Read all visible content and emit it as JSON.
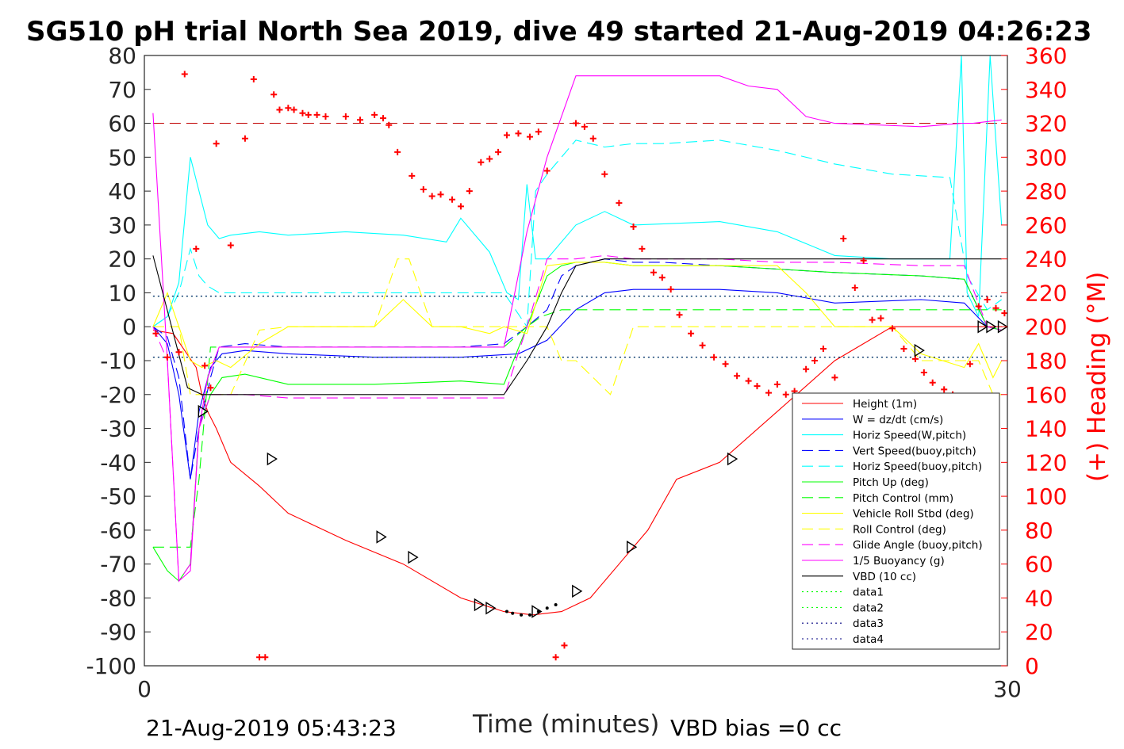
{
  "chart_data": {
    "type": "line",
    "title": "SG510 pH trial North Sea 2019, dive 49 started 21-Aug-2019 04:26:23",
    "xlabel": "Time (minutes)",
    "ylabel": "",
    "y2label": "(+) Heading (°M)",
    "xlim": [
      0,
      30
    ],
    "ylim": [
      -100,
      80
    ],
    "y2lim": [
      0,
      360
    ],
    "x_ticks": [
      "0",
      "30"
    ],
    "y_ticks": [
      "80",
      "70",
      "60",
      "50",
      "40",
      "30",
      "20",
      "10",
      "0",
      "-10",
      "-20",
      "-30",
      "-40",
      "-50",
      "-60",
      "-70",
      "-80",
      "-90",
      "-100"
    ],
    "y2_ticks": [
      "360",
      "340",
      "320",
      "300",
      "280",
      "260",
      "240",
      "220",
      "200",
      "180",
      "160",
      "140",
      "120",
      "100",
      "80",
      "60",
      "40",
      "20",
      "0"
    ],
    "footer_left": "21-Aug-2019 05:43:23",
    "footer_right": "VBD bias =0 cc",
    "legend_position": "bottom-right",
    "series": [
      {
        "name": "Height (1m)",
        "color": "#ff0000",
        "dash": "solid",
        "x": [
          0.3,
          1.0,
          1.8,
          2.0,
          2.2,
          2.5,
          3.0,
          4.0,
          5.0,
          7.0,
          9.0,
          11.0,
          12.5,
          13.5,
          14.5,
          15.5,
          16.5,
          17.5,
          18.5,
          20.0,
          22.0,
          24.0,
          26.0,
          28.0,
          28.6,
          29.0,
          29.8
        ],
        "y": [
          -1,
          -2,
          -12,
          -20,
          -25,
          -30,
          -40,
          -47,
          -55,
          -63,
          -70,
          -80,
          -84,
          -85,
          -84,
          -80,
          -70,
          -60,
          -45,
          -40,
          -25,
          -10,
          0,
          0,
          0,
          0,
          0
        ]
      },
      {
        "name": "W = dz/dt (cm/s)",
        "color": "#0000ff",
        "dash": "solid",
        "x": [
          0.3,
          0.8,
          1.2,
          1.6,
          1.9,
          2.3,
          2.7,
          3.5,
          5,
          8,
          11,
          13,
          14,
          15,
          16,
          17,
          18,
          20,
          22,
          24,
          27,
          28.5,
          29.3,
          29.8
        ],
        "y": [
          0,
          -5,
          -20,
          -45,
          -25,
          -12,
          -8,
          -7,
          -8,
          -9,
          -9,
          -8,
          -4,
          5,
          10,
          11,
          11,
          11,
          10,
          7,
          8,
          7,
          0,
          -1
        ]
      },
      {
        "name": "Horiz Speed(W,pitch)",
        "color": "#00ffff",
        "dash": "solid",
        "x": [
          0.3,
          0.8,
          1.2,
          1.6,
          1.9,
          2.2,
          2.6,
          3.0,
          4.0,
          5.0,
          7.0,
          9.0,
          10.5,
          11.0,
          12.0,
          12.6,
          13.0,
          13.3,
          13.6,
          14.0,
          15.0,
          16.0,
          17.0,
          20.0,
          22.0,
          24.0,
          26.0,
          28.0,
          28.4,
          28.6,
          29.0,
          29.4,
          29.8
        ],
        "y": [
          0,
          3,
          13,
          50,
          40,
          30,
          26,
          27,
          28,
          27,
          28,
          27,
          25,
          32,
          22,
          10,
          8,
          42,
          20,
          20,
          30,
          34,
          30,
          31,
          28,
          21,
          20,
          20,
          80,
          10,
          3,
          80,
          30
        ]
      },
      {
        "name": "Vert Speed(buoy,pitch)",
        "color": "#0000ff",
        "dash": "longdash",
        "x": [
          0.3,
          0.8,
          1.2,
          1.6,
          1.9,
          2.3,
          2.6,
          3.5,
          5,
          8,
          11,
          12.5,
          13.3,
          14,
          14.5,
          15,
          16,
          17,
          18,
          20,
          22,
          24,
          27,
          28.5,
          29.3,
          29.8
        ],
        "y": [
          0,
          -3,
          -15,
          -45,
          -30,
          -15,
          -6,
          -5,
          -6,
          -6,
          -6,
          -5,
          0,
          5,
          15,
          18,
          20,
          19,
          19,
          18,
          17,
          16,
          15,
          14,
          0,
          -1
        ]
      },
      {
        "name": "Horiz Speed(buoy,pitch)",
        "color": "#00ffff",
        "dash": "longdash",
        "x": [
          0.3,
          0.8,
          1.2,
          1.6,
          1.9,
          2.2,
          2.6,
          3.5,
          5,
          8,
          11,
          12.5,
          13.3,
          13.6,
          14,
          15,
          16,
          17,
          18,
          20,
          22,
          24,
          26,
          28,
          28.6,
          29.3,
          29.8
        ],
        "y": [
          0,
          3,
          10,
          23,
          15,
          12,
          10,
          10,
          10,
          10,
          10,
          10,
          0,
          40,
          45,
          55,
          53,
          54,
          54,
          55,
          52,
          48,
          45,
          44,
          15,
          5,
          8
        ]
      },
      {
        "name": "Pitch Up (deg)",
        "color": "#00ff00",
        "dash": "solid",
        "x": [
          0.3,
          0.8,
          1.2,
          1.6,
          1.9,
          2.3,
          2.7,
          3.5,
          5,
          8,
          11,
          12.5,
          13.3,
          14,
          14.5,
          15,
          16,
          17,
          18,
          20,
          22,
          24,
          27,
          28.5,
          29.3,
          29.8
        ],
        "y": [
          -65,
          -72,
          -75,
          -70,
          -30,
          -20,
          -15,
          -14,
          -17,
          -17,
          -16,
          -17,
          0,
          15,
          18,
          19,
          19,
          18,
          18,
          18,
          17,
          16,
          15,
          14,
          0,
          -1
        ]
      },
      {
        "name": "Pitch Control (mm)",
        "color": "#00ff00",
        "dash": "longdash",
        "x": [
          0.3,
          1.2,
          1.6,
          1.9,
          2.3,
          4,
          8,
          11,
          12.5,
          13.3,
          13.8,
          14.5,
          20,
          24,
          28,
          28.5,
          29.8
        ],
        "y": [
          -65,
          -65,
          -65,
          -45,
          -6,
          -6,
          -6,
          -6,
          -6,
          0,
          3,
          5,
          5,
          5,
          5,
          5,
          5
        ]
      },
      {
        "name": "Vehicle Roll Stbd (deg)",
        "color": "#ffff00",
        "dash": "solid",
        "x": [
          0.3,
          0.8,
          1.2,
          1.6,
          2.0,
          2.5,
          3.0,
          4.0,
          5.0,
          7.0,
          8.0,
          9.0,
          10.0,
          11.0,
          12.0,
          12.5,
          13.3,
          14,
          15,
          16,
          17,
          18,
          20,
          22,
          23,
          24,
          26,
          27,
          28.5,
          29.0,
          29.5,
          29.8
        ],
        "y": [
          0,
          10,
          0,
          -10,
          -12,
          -10,
          -12,
          -5,
          0,
          0,
          0,
          8,
          0,
          0,
          -2,
          0,
          -2,
          18,
          19,
          19,
          18,
          18,
          18,
          18,
          10,
          0,
          0,
          -8,
          -12,
          -5,
          -15,
          -10
        ]
      },
      {
        "name": "Roll Control (deg)",
        "color": "#ffff00",
        "dash": "longdash",
        "x": [
          0.3,
          0.8,
          1.2,
          1.6,
          2.0,
          2.5,
          3.0,
          4.0,
          5.0,
          7.0,
          8.0,
          8.8,
          9.2,
          10.0,
          11.0,
          12.0,
          12.5,
          13.3,
          14,
          14.5,
          15,
          16.2,
          17,
          18,
          20,
          22,
          23,
          24,
          26,
          27,
          28.5,
          29.0,
          29.5,
          29.8
        ],
        "y": [
          0,
          0,
          0,
          -20,
          -20,
          -20,
          -20,
          -1,
          0,
          0,
          0,
          20,
          20,
          0,
          0,
          0,
          0,
          0,
          0,
          -10,
          -10,
          -20,
          0,
          0,
          0,
          0,
          0,
          0,
          0,
          -10,
          -10,
          -10,
          -20,
          -20
        ]
      },
      {
        "name": "Glide Angle (buoy,pitch)",
        "color": "#ff00ff",
        "dash": "longdash",
        "x": [
          0.3,
          0.8,
          1.2,
          1.6,
          1.9,
          2.3,
          2.7,
          3.5,
          5,
          8,
          11,
          12.5,
          13.3,
          14,
          15,
          16,
          17,
          18,
          20,
          22,
          24,
          27,
          28.5,
          29.3,
          29.8
        ],
        "y": [
          0,
          -10,
          -75,
          -70,
          -30,
          -20,
          -20,
          -20,
          -21,
          -21,
          -21,
          -21,
          0,
          20,
          20,
          21,
          20,
          20,
          20,
          19,
          19,
          18,
          18,
          0,
          -1
        ]
      },
      {
        "name": "1/5 Buoyancy (g)",
        "color": "#ff00ff",
        "dash": "solid",
        "x": [
          0.3,
          0.8,
          1.2,
          1.6,
          1.9,
          2.2,
          2.6,
          3.5,
          5,
          8,
          11,
          12.5,
          13.3,
          14.0,
          15.0,
          16.0,
          17.0,
          20.0,
          21.0,
          22.0,
          23.0,
          24.0,
          27.0,
          28.4,
          28.8,
          29.8
        ],
        "y": [
          63,
          -10,
          -75,
          -72,
          -30,
          -15,
          -6,
          -6,
          -6,
          -6,
          -6,
          -6,
          28,
          50,
          74,
          74,
          74,
          74,
          71,
          70,
          62,
          60,
          59,
          60,
          60,
          61
        ]
      },
      {
        "name": "VBD (10 cc)",
        "color": "#000000",
        "dash": "solid",
        "x": [
          0.3,
          1.5,
          2.0,
          5,
          8,
          11,
          12.5,
          13.3,
          14.0,
          14.5,
          15.0,
          16.0,
          20.0,
          24.0,
          28.0,
          29.8
        ],
        "y": [
          21,
          -18,
          -20,
          -20,
          -20,
          -20,
          -20,
          -10,
          0,
          10,
          18,
          20,
          20,
          20,
          20,
          20
        ]
      },
      {
        "name": "data1",
        "color": "#00ff00",
        "dash": "dotted",
        "x": [
          0.3,
          29.8
        ],
        "y": [
          9,
          9
        ]
      },
      {
        "name": "data2",
        "color": "#00ff00",
        "dash": "dotted",
        "x": [
          0.3,
          29.8
        ],
        "y": [
          -9,
          -9
        ]
      },
      {
        "name": "data3",
        "color": "#000080",
        "dash": "dotted",
        "x": [
          0.3,
          29.8
        ],
        "y": [
          9,
          9
        ]
      },
      {
        "name": "data4",
        "color": "#000080",
        "dash": "dotted",
        "x": [
          0.3,
          29.8
        ],
        "y": [
          -9,
          -9
        ]
      }
    ],
    "reference_line": {
      "y2": 320,
      "color": "#c00000",
      "dash": "longdash"
    },
    "heading_points": {
      "color": "#ff0000",
      "x": [
        0.4,
        0.8,
        1.2,
        1.4,
        1.8,
        2.1,
        2.3,
        2.5,
        3.0,
        3.5,
        3.8,
        4.0,
        4.2,
        4.5,
        4.7,
        5.0,
        5.2,
        5.5,
        5.7,
        6.0,
        6.3,
        7.0,
        7.5,
        8.0,
        8.3,
        8.5,
        8.8,
        9.3,
        9.7,
        10.0,
        10.3,
        10.7,
        11.0,
        11.3,
        11.7,
        12.0,
        12.3,
        12.6,
        13.0,
        13.4,
        13.7,
        14.0,
        14.3,
        14.6,
        15.0,
        15.3,
        15.6,
        16.0,
        16.5,
        17.0,
        17.3,
        17.7,
        18.0,
        18.3,
        18.6,
        19.0,
        19.4,
        19.8,
        20.2,
        20.6,
        21.0,
        21.3,
        21.7,
        22.0,
        22.3,
        22.6,
        23.0,
        23.3,
        23.6,
        24.0,
        24.3,
        24.7,
        25.0,
        25.3,
        25.6,
        26.0,
        26.4,
        26.8,
        27.1,
        27.4,
        27.8,
        28.1,
        28.4,
        28.7,
        29.0,
        29.3,
        29.6,
        29.9
      ],
      "y": [
        196,
        182,
        185,
        349,
        246,
        177,
        164,
        308,
        248,
        311,
        346,
        5,
        5,
        337,
        328,
        329,
        328,
        326,
        325,
        325,
        324,
        324,
        322,
        325,
        323,
        319,
        303,
        289,
        281,
        277,
        278,
        275,
        271,
        280,
        297,
        299,
        303,
        313,
        314,
        312,
        315,
        292,
        5,
        12,
        320,
        318,
        311,
        290,
        273,
        259,
        246,
        232,
        229,
        222,
        207,
        196,
        189,
        182,
        178,
        171,
        168,
        165,
        161,
        166,
        160,
        162,
        175,
        180,
        187,
        170,
        252,
        223,
        239,
        204,
        205,
        199,
        187,
        181,
        173,
        167,
        163,
        160,
        154,
        178,
        212,
        216,
        211,
        208
      ]
    },
    "triangle_markers": [
      {
        "x": 2.0,
        "y": -25
      },
      {
        "x": 4.4,
        "y": -39
      },
      {
        "x": 8.2,
        "y": -62
      },
      {
        "x": 9.3,
        "y": -68
      },
      {
        "x": 11.6,
        "y": -82
      },
      {
        "x": 12.0,
        "y": -83
      },
      {
        "x": 13.6,
        "y": -84
      },
      {
        "x": 15.0,
        "y": -78
      },
      {
        "x": 16.9,
        "y": -65
      },
      {
        "x": 20.4,
        "y": -39
      },
      {
        "x": 26.9,
        "y": -7
      },
      {
        "x": 29.1,
        "y": 0
      },
      {
        "x": 29.4,
        "y": 0
      },
      {
        "x": 29.8,
        "y": 0
      }
    ],
    "dot_markers": {
      "x": [
        12.6,
        12.8,
        13.1,
        13.4,
        13.7,
        14.0,
        14.3
      ],
      "y": [
        -84,
        -84.5,
        -85,
        -85,
        -84,
        -83,
        -82
      ]
    }
  }
}
